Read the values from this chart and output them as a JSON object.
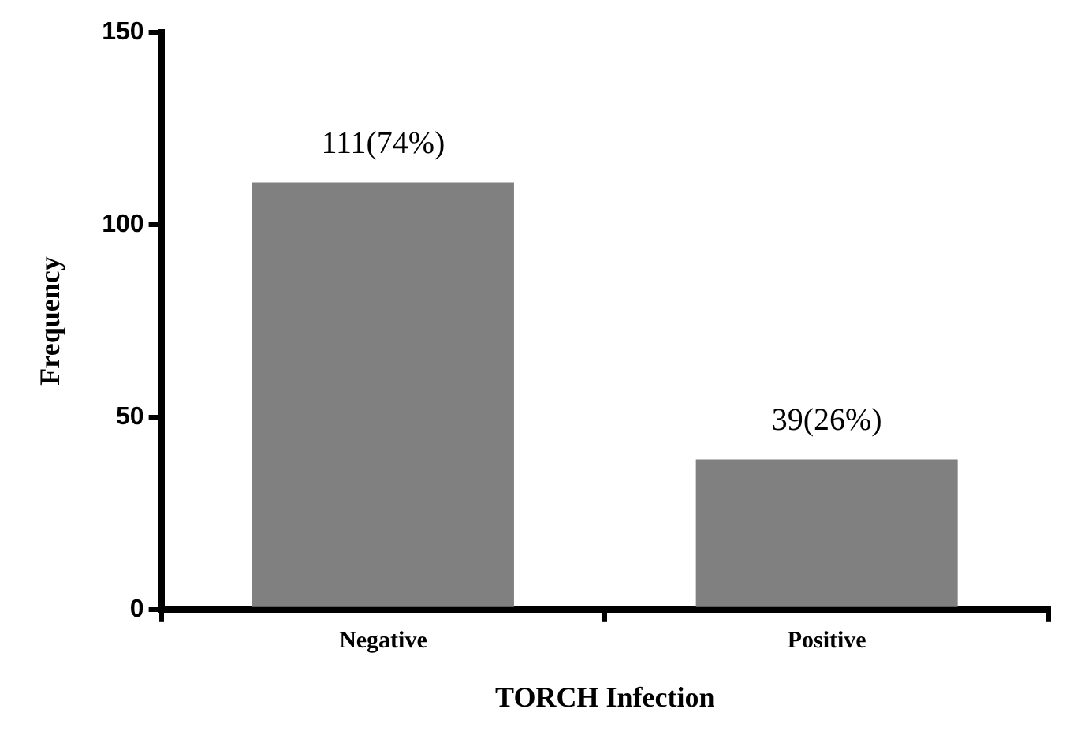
{
  "chart_data": {
    "type": "bar",
    "xlabel": "TORCH Infection",
    "ylabel": "Frequency",
    "categories": [
      "Negative",
      "Positive"
    ],
    "values": [
      111,
      39
    ],
    "color": "#808080",
    "value_labels": [
      "111(74%)",
      "39(26%)"
    ],
    "ylim": [
      0,
      150
    ],
    "yticks": [
      0,
      50,
      100,
      150
    ],
    "grid": false,
    "legend": false
  }
}
